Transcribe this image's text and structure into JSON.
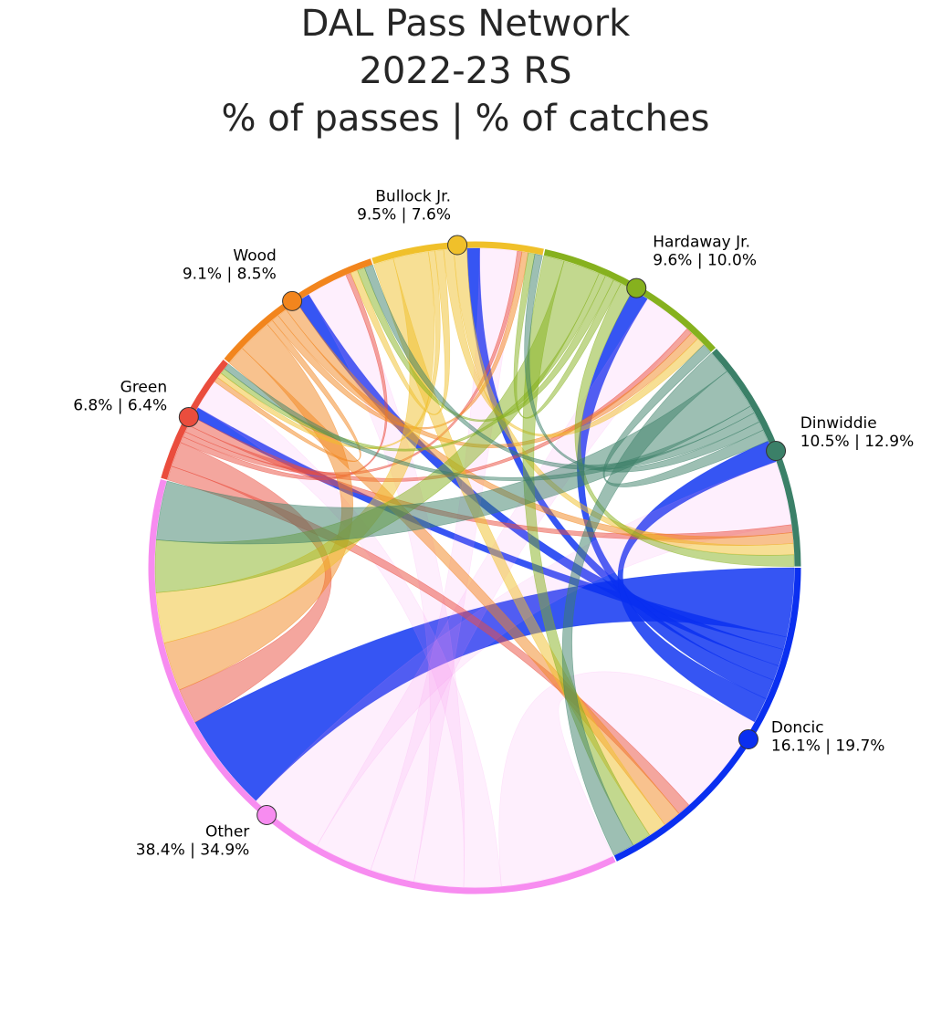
{
  "title": {
    "line1": "DAL Pass Network",
    "line2": "2022-23 RS",
    "line3": "% of passes | % of catches"
  },
  "chart_data": {
    "type": "chord",
    "nodes": [
      {
        "name": "Doncic",
        "passes_pct": 16.1,
        "catches_pct": 19.7,
        "stat_label": "16.1% | 19.7%",
        "color": "#0a2ff0"
      },
      {
        "name": "Other",
        "passes_pct": 38.4,
        "catches_pct": 34.9,
        "stat_label": "38.4% | 34.9%",
        "color": "#f78cf0"
      },
      {
        "name": "Green",
        "passes_pct": 6.8,
        "catches_pct": 6.4,
        "stat_label": "6.8% | 6.4%",
        "color": "#ea4d3d"
      },
      {
        "name": "Wood",
        "passes_pct": 9.1,
        "catches_pct": 8.5,
        "stat_label": "9.1% | 8.5%",
        "color": "#f2851d"
      },
      {
        "name": "Bullock Jr.",
        "passes_pct": 9.5,
        "catches_pct": 7.6,
        "stat_label": "9.5% | 7.6%",
        "color": "#f0c02a"
      },
      {
        "name": "Hardaway Jr.",
        "passes_pct": 9.6,
        "catches_pct": 10.0,
        "stat_label": "9.6% | 10.0%",
        "color": "#86b11e"
      },
      {
        "name": "Dinwiddie",
        "passes_pct": 10.5,
        "catches_pct": 12.9,
        "stat_label": "10.5% | 12.9%",
        "color": "#3b8068"
      }
    ]
  }
}
